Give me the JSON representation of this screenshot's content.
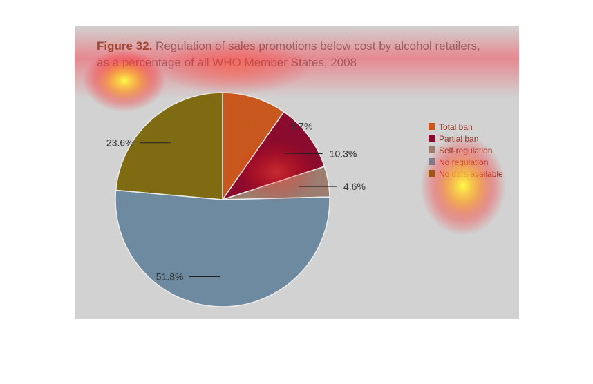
{
  "chart_data": {
    "type": "pie",
    "title_bold": "Figure 32.",
    "title_rest_line1": " Regulation of sales promotions below cost by alcohol retailers,",
    "title_line2": "as a percentage of all WHO Member States, 2008",
    "start_angle_deg": 0,
    "slices": [
      {
        "label": "Total ban",
        "value": 9.7,
        "display": "9.7%",
        "color": "#c8581e"
      },
      {
        "label": "Partial ban",
        "value": 10.3,
        "display": "10.3%",
        "color": "#8a0b2e"
      },
      {
        "label": "Self-regulation",
        "value": 4.6,
        "display": "4.6%",
        "color": "#9c7d70"
      },
      {
        "label": "No regulation",
        "value": 51.8,
        "display": "51.8%",
        "color": "#6e8aa0"
      },
      {
        "label": "No data available",
        "value": 23.6,
        "display": "23.6%",
        "color": "#7f6c12"
      }
    ],
    "legend_position": "right"
  }
}
